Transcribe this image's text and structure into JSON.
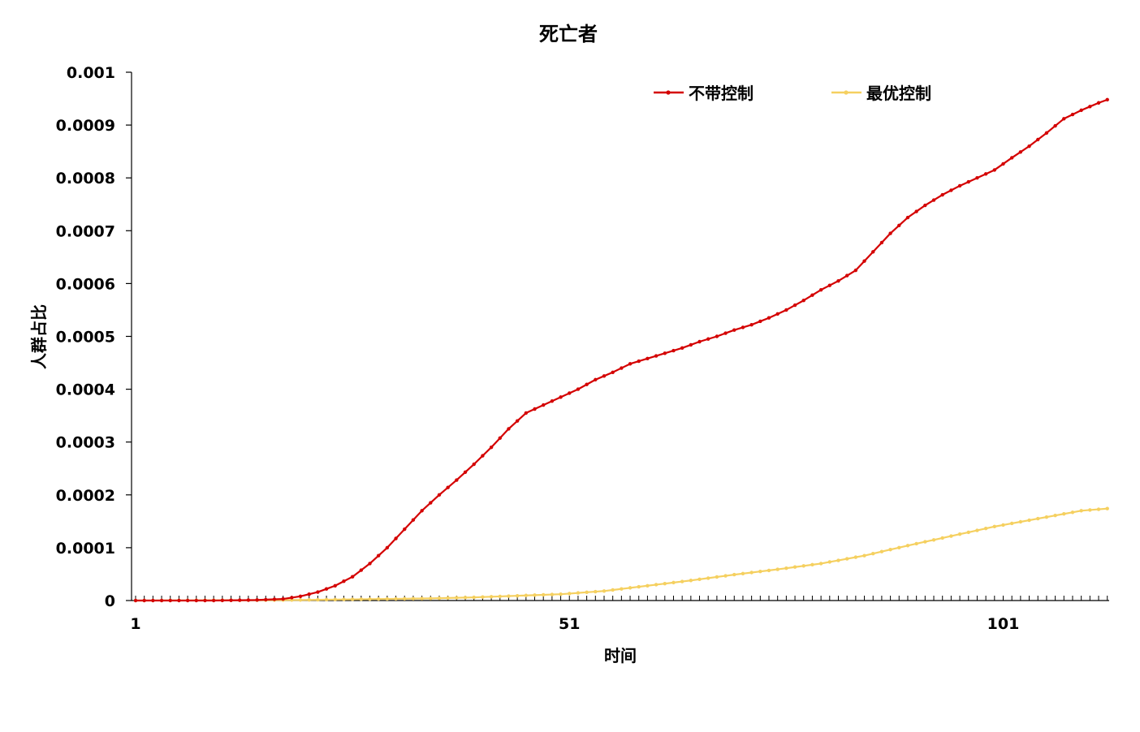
{
  "chart_data": {
    "type": "line",
    "title": "死亡者",
    "xlabel": "时间",
    "ylabel": "人群占比",
    "xlim": [
      1,
      113
    ],
    "ylim": [
      0,
      0.001
    ],
    "x_tick_labels": [
      "1",
      "51",
      "101"
    ],
    "y_tick_labels": [
      "0",
      "0.0001",
      "0.0002",
      "0.0003",
      "0.0004",
      "0.0005",
      "0.0006",
      "0.0007",
      "0.0008",
      "0.0009",
      "0.001"
    ],
    "legend_position": "top-right",
    "grid": false,
    "series": [
      {
        "name": "不带控制",
        "color": "#d40000",
        "x": [
          1,
          10,
          15,
          18,
          20,
          22,
          24,
          26,
          28,
          30,
          32,
          34,
          36,
          38,
          40,
          42,
          44,
          46,
          48,
          50,
          52,
          54,
          56,
          58,
          60,
          62,
          64,
          66,
          68,
          70,
          72,
          74,
          76,
          78,
          80,
          82,
          84,
          86,
          88,
          90,
          92,
          94,
          96,
          98,
          100,
          102,
          104,
          106,
          108,
          110,
          112,
          113
        ],
        "y": [
          0,
          0,
          1e-06,
          3e-06,
          8e-06,
          1.6e-05,
          2.8e-05,
          4.5e-05,
          7e-05,
          0.0001,
          0.000135,
          0.00017,
          0.0002,
          0.000228,
          0.000258,
          0.00029,
          0.000325,
          0.000355,
          0.00037,
          0.000385,
          0.0004,
          0.000418,
          0.000432,
          0.000448,
          0.000458,
          0.000468,
          0.000478,
          0.00049,
          0.0005,
          0.000512,
          0.000522,
          0.000535,
          0.00055,
          0.000568,
          0.000588,
          0.000605,
          0.000625,
          0.00066,
          0.000695,
          0.000725,
          0.000748,
          0.000768,
          0.000785,
          0.0008,
          0.000815,
          0.000838,
          0.00086,
          0.000885,
          0.000912,
          0.000928,
          0.000942,
          0.000948
        ]
      },
      {
        "name": "最优控制",
        "color": "#f5d060",
        "x": [
          1,
          20,
          30,
          35,
          40,
          45,
          50,
          55,
          60,
          65,
          70,
          75,
          80,
          85,
          90,
          95,
          100,
          105,
          110,
          113
        ],
        "y": [
          0,
          1e-06,
          3e-06,
          4e-06,
          6e-06,
          9e-06,
          1.2e-05,
          1.8e-05,
          2.8e-05,
          3.8e-05,
          4.9e-05,
          5.9e-05,
          7e-05,
          8.5e-05,
          0.000104,
          0.000122,
          0.00014,
          0.000155,
          0.00017,
          0.000174
        ]
      }
    ]
  }
}
